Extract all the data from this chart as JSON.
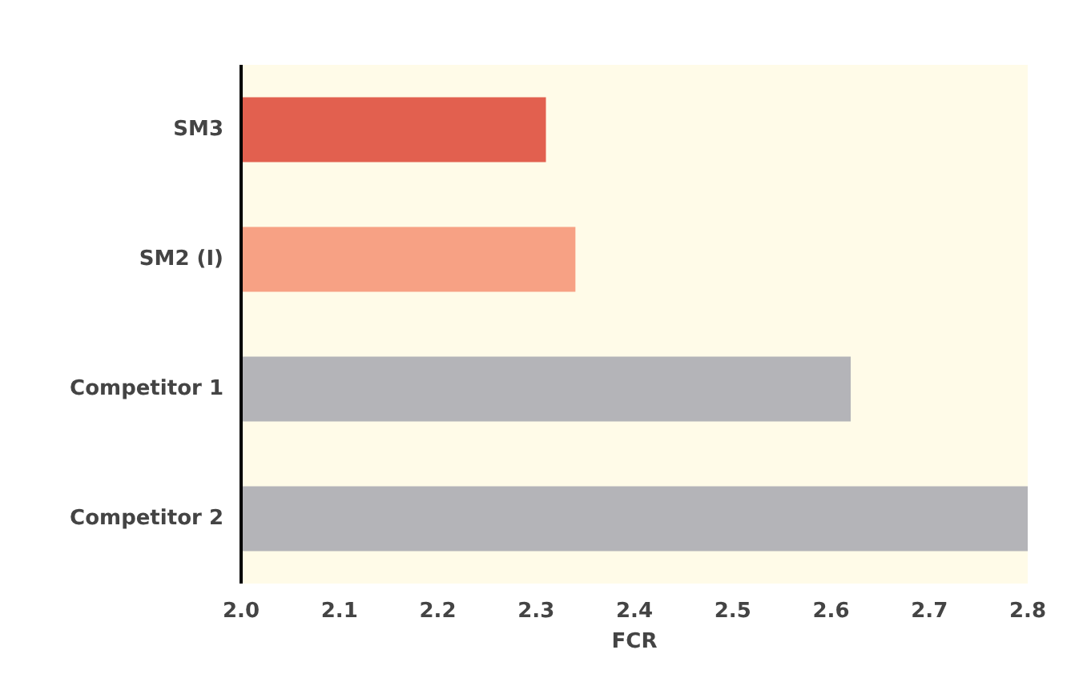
{
  "chart_data": {
    "type": "bar",
    "orientation": "horizontal",
    "xlabel": "FCR",
    "categories": [
      "SM3",
      "SM2 (I)",
      "Competitor 1",
      "Competitor 2"
    ],
    "values": [
      2.31,
      2.34,
      2.62,
      2.8
    ],
    "colors": [
      "#e2604f",
      "#f7a184",
      "#b4b4b8",
      "#b4b4b8"
    ],
    "xlim": [
      2.0,
      2.8
    ],
    "xticks": [
      {
        "value": 2,
        "label": "2.0"
      },
      2.1,
      2.2,
      2.3,
      2.4,
      2.5,
      2.6,
      2.7,
      2.8
    ],
    "grid": false
  }
}
